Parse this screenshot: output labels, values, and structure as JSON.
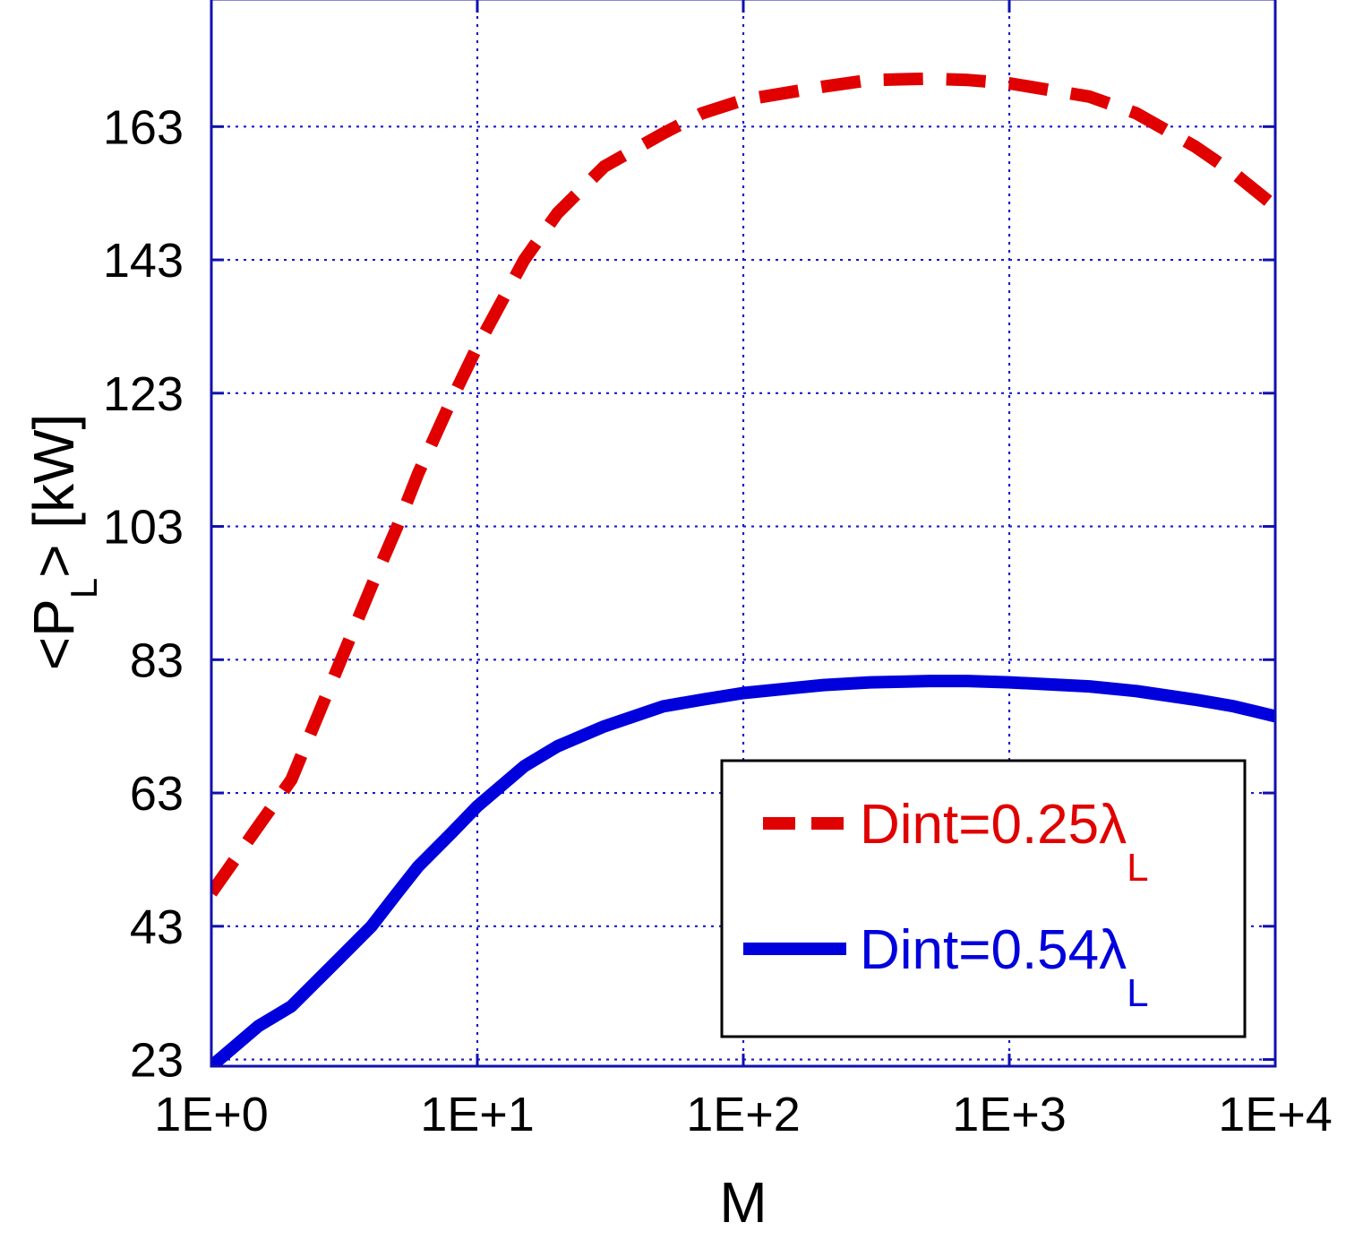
{
  "chart_data": {
    "type": "line",
    "xlabel": "M",
    "ylabel_parts": {
      "open": "<P",
      "sub": "L",
      "close": "> [kW]"
    },
    "x_scale": "log",
    "xlim": [
      1,
      10000
    ],
    "ylim": [
      22,
      182
    ],
    "x_ticks": [
      {
        "value": 1,
        "label": "1E+0"
      },
      {
        "value": 10,
        "label": "1E+1"
      },
      {
        "value": 100,
        "label": "1E+2"
      },
      {
        "value": 1000,
        "label": "1E+3"
      },
      {
        "value": 10000,
        "label": "1E+4"
      }
    ],
    "y_ticks": [
      {
        "value": 23,
        "label": "23"
      },
      {
        "value": 43,
        "label": "43"
      },
      {
        "value": 63,
        "label": "63"
      },
      {
        "value": 83,
        "label": "83"
      },
      {
        "value": 103,
        "label": "103"
      },
      {
        "value": 123,
        "label": "123"
      },
      {
        "value": 143,
        "label": "143"
      },
      {
        "value": 163,
        "label": "163"
      }
    ],
    "grid": true,
    "legend_position": "bottom-right",
    "series": [
      {
        "name": "Dint=0.25λ",
        "name_sub": "L",
        "style": "dashed",
        "color": "#e00000",
        "x": [
          1,
          1.5,
          2,
          3,
          4,
          5,
          6,
          8,
          10,
          15,
          20,
          30,
          50,
          70,
          100,
          200,
          300,
          500,
          700,
          1000,
          2000,
          3000,
          5000,
          7000,
          10000
        ],
        "y": [
          48,
          58,
          65,
          82,
          94,
          103,
          111,
          122,
          130,
          143,
          150,
          157,
          162,
          165,
          167,
          169,
          170,
          170.2,
          170,
          169.5,
          167.5,
          165,
          160,
          156,
          151
        ]
      },
      {
        "name": "Dint=0.54λ",
        "name_sub": "L",
        "style": "solid",
        "color": "#0000dd",
        "x": [
          1,
          1.5,
          2,
          3,
          4,
          5,
          6,
          8,
          10,
          15,
          20,
          30,
          50,
          70,
          100,
          200,
          300,
          500,
          700,
          1000,
          2000,
          3000,
          5000,
          7000,
          10000
        ],
        "y": [
          22,
          28,
          31,
          38,
          43,
          48,
          52,
          57,
          61,
          67,
          70,
          73,
          76,
          77,
          78,
          79.2,
          79.6,
          79.8,
          79.8,
          79.6,
          79,
          78.3,
          77,
          76,
          74.5
        ]
      }
    ]
  }
}
